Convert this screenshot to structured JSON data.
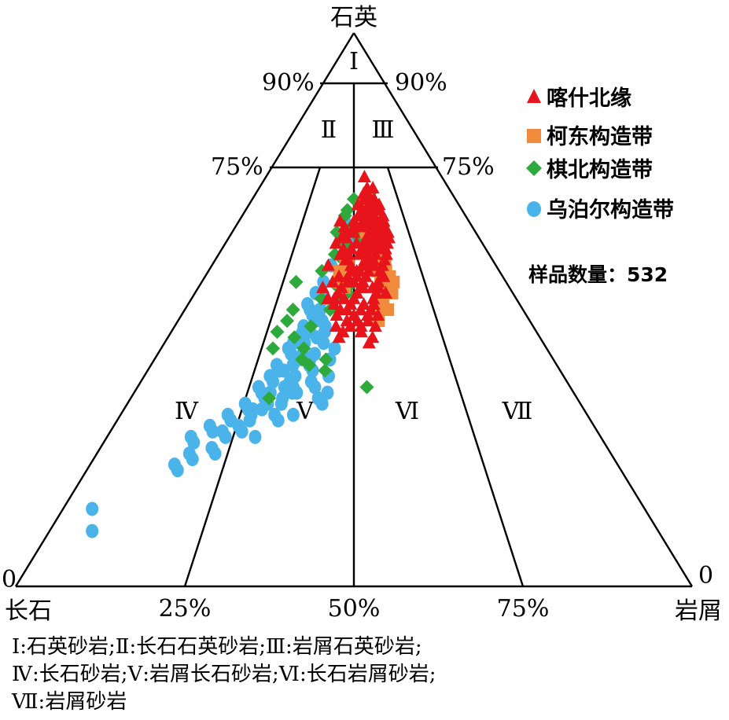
{
  "chart_data": {
    "type": "scatter",
    "diagram": "ternary",
    "apices": {
      "top": "石英",
      "left": "长石",
      "right": "岩屑"
    },
    "zero_labels": {
      "left": "0",
      "right": "0"
    },
    "quartz_ticks": [
      {
        "left": "90%",
        "right": "90%"
      },
      {
        "left": "75%",
        "right": "75%"
      }
    ],
    "base_ticks": [
      "25%",
      "50%",
      "75%"
    ],
    "field_labels": [
      "Ⅰ",
      "Ⅱ",
      "Ⅲ",
      "Ⅳ",
      "Ⅴ",
      "Ⅵ",
      "Ⅶ"
    ],
    "sample_count": "样品数量：532",
    "colors": {
      "red": "#e8141c",
      "orange": "#f08a3c",
      "green": "#2eaa3c",
      "blue": "#4ab4ea"
    },
    "series": [
      {
        "name": "喀什北缘",
        "marker": "triangle",
        "color": "#e8141c",
        "points": [
          [
            0.74,
            0.56
          ],
          [
            0.72,
            0.57
          ],
          [
            0.71,
            0.57
          ],
          [
            0.7,
            0.58
          ],
          [
            0.69,
            0.59
          ],
          [
            0.69,
            0.57
          ],
          [
            0.68,
            0.59
          ],
          [
            0.68,
            0.58
          ],
          [
            0.68,
            0.56
          ],
          [
            0.67,
            0.59
          ],
          [
            0.67,
            0.58
          ],
          [
            0.66,
            0.6
          ],
          [
            0.66,
            0.57
          ],
          [
            0.66,
            0.55
          ],
          [
            0.66,
            0.54
          ],
          [
            0.65,
            0.6
          ],
          [
            0.65,
            0.58
          ],
          [
            0.65,
            0.56
          ],
          [
            0.64,
            0.61
          ],
          [
            0.64,
            0.59
          ],
          [
            0.64,
            0.57
          ],
          [
            0.63,
            0.61
          ],
          [
            0.63,
            0.58
          ],
          [
            0.63,
            0.55
          ],
          [
            0.62,
            0.6
          ],
          [
            0.62,
            0.57
          ],
          [
            0.62,
            0.54
          ],
          [
            0.61,
            0.59
          ],
          [
            0.61,
            0.56
          ],
          [
            0.61,
            0.53
          ],
          [
            0.6,
            0.58
          ],
          [
            0.6,
            0.55
          ],
          [
            0.6,
            0.52
          ],
          [
            0.59,
            0.57
          ],
          [
            0.59,
            0.54
          ],
          [
            0.58,
            0.56
          ],
          [
            0.58,
            0.53
          ],
          [
            0.57,
            0.55
          ],
          [
            0.57,
            0.52
          ],
          [
            0.56,
            0.54
          ],
          [
            0.56,
            0.51
          ],
          [
            0.55,
            0.53
          ],
          [
            0.54,
            0.52
          ],
          [
            0.53,
            0.51
          ],
          [
            0.52,
            0.5
          ],
          [
            0.51,
            0.49
          ],
          [
            0.5,
            0.48
          ],
          [
            0.69,
            0.62
          ],
          [
            0.68,
            0.62
          ],
          [
            0.67,
            0.63
          ],
          [
            0.66,
            0.63
          ],
          [
            0.65,
            0.63
          ],
          [
            0.64,
            0.64
          ],
          [
            0.63,
            0.64
          ],
          [
            0.62,
            0.63
          ],
          [
            0.61,
            0.62
          ],
          [
            0.6,
            0.62
          ],
          [
            0.59,
            0.61
          ],
          [
            0.58,
            0.6
          ],
          [
            0.57,
            0.59
          ],
          [
            0.55,
            0.58
          ],
          [
            0.54,
            0.58
          ],
          [
            0.53,
            0.57
          ],
          [
            0.52,
            0.56
          ],
          [
            0.51,
            0.56
          ],
          [
            0.5,
            0.55
          ],
          [
            0.49,
            0.54
          ],
          [
            0.48,
            0.54
          ],
          [
            0.49,
            0.5
          ],
          [
            0.55,
            0.48
          ],
          [
            0.54,
            0.46
          ],
          [
            0.62,
            0.51
          ],
          [
            0.64,
            0.5
          ],
          [
            0.61,
            0.49
          ],
          [
            0.66,
            0.44
          ],
          [
            0.65,
            0.46
          ],
          [
            0.58,
            0.49
          ],
          [
            0.56,
            0.48
          ],
          [
            0.52,
            0.47
          ],
          [
            0.5,
            0.46
          ],
          [
            0.47,
            0.49
          ],
          [
            0.47,
            0.52
          ],
          [
            0.48,
            0.51
          ],
          [
            0.45,
            0.55
          ],
          [
            0.54,
            0.53
          ],
          [
            0.59,
            0.47
          ],
          [
            0.52,
            0.44
          ],
          [
            0.55,
            0.43
          ],
          [
            0.6,
            0.45
          ],
          [
            0.63,
            0.47
          ],
          [
            0.57,
            0.49
          ],
          [
            0.53,
            0.45
          ],
          [
            0.46,
            0.52
          ],
          [
            0.49,
            0.57
          ],
          [
            0.58,
            0.57
          ],
          [
            0.65,
            0.53
          ],
          [
            0.67,
            0.52
          ],
          [
            0.64,
            0.47
          ],
          [
            0.63,
            0.45
          ],
          [
            0.56,
            0.45
          ],
          [
            0.51,
            0.44
          ],
          [
            0.6,
            0.46
          ],
          [
            0.71,
            0.55
          ],
          [
            0.7,
            0.55
          ],
          [
            0.68,
            0.54
          ],
          [
            0.69,
            0.52
          ],
          [
            0.66,
            0.5
          ],
          [
            0.61,
            0.46
          ],
          [
            0.5,
            0.52
          ],
          [
            0.48,
            0.48
          ],
          [
            0.56,
            0.6
          ],
          [
            0.53,
            0.6
          ],
          [
            0.58,
            0.54
          ],
          [
            0.54,
            0.56
          ],
          [
            0.51,
            0.53
          ],
          [
            0.47,
            0.56
          ],
          [
            0.44,
            0.54
          ],
          [
            0.6,
            0.48
          ],
          [
            0.57,
            0.51
          ],
          [
            0.67,
            0.55
          ],
          [
            0.7,
            0.6
          ],
          [
            0.72,
            0.6
          ],
          [
            0.62,
            0.55
          ],
          [
            0.65,
            0.5
          ],
          [
            0.55,
            0.5
          ],
          [
            0.52,
            0.42
          ],
          [
            0.58,
            0.41
          ],
          [
            0.54,
            0.4
          ],
          [
            0.62,
            0.43
          ],
          [
            0.49,
            0.45
          ],
          [
            0.46,
            0.47
          ],
          [
            0.47,
            0.45
          ],
          [
            0.45,
            0.46
          ]
        ]
      },
      {
        "name": "柯东构造带",
        "marker": "square",
        "color": "#f08a3c",
        "points": [
          [
            0.67,
            0.54
          ],
          [
            0.66,
            0.56
          ],
          [
            0.64,
            0.56
          ],
          [
            0.64,
            0.55
          ],
          [
            0.62,
            0.58
          ],
          [
            0.62,
            0.56
          ],
          [
            0.61,
            0.57
          ],
          [
            0.6,
            0.6
          ],
          [
            0.6,
            0.59
          ],
          [
            0.6,
            0.57
          ],
          [
            0.6,
            0.55
          ],
          [
            0.59,
            0.61
          ],
          [
            0.59,
            0.59
          ],
          [
            0.59,
            0.56
          ],
          [
            0.58,
            0.61
          ],
          [
            0.58,
            0.59
          ],
          [
            0.57,
            0.61
          ],
          [
            0.57,
            0.58
          ],
          [
            0.56,
            0.62
          ],
          [
            0.56,
            0.59
          ],
          [
            0.55,
            0.61
          ],
          [
            0.55,
            0.59
          ],
          [
            0.54,
            0.6
          ],
          [
            0.53,
            0.59
          ],
          [
            0.52,
            0.59
          ],
          [
            0.51,
            0.58
          ],
          [
            0.5,
            0.57
          ],
          [
            0.48,
            0.57
          ],
          [
            0.69,
            0.55
          ],
          [
            0.7,
            0.56
          ],
          [
            0.68,
            0.55
          ],
          [
            0.66,
            0.58
          ],
          [
            0.63,
            0.58
          ],
          [
            0.55,
            0.63
          ],
          [
            0.53,
            0.62
          ],
          [
            0.5,
            0.6
          ],
          [
            0.65,
            0.57
          ],
          [
            0.58,
            0.57
          ],
          [
            0.61,
            0.59
          ],
          [
            0.63,
            0.6
          ],
          [
            0.58,
            0.48
          ],
          [
            0.55,
            0.45
          ],
          [
            0.57,
            0.45
          ],
          [
            0.54,
            0.47
          ],
          [
            0.59,
            0.47
          ]
        ]
      },
      {
        "name": "棋北构造带",
        "marker": "diamond",
        "color": "#2eaa3c",
        "points": [
          [
            0.71,
            0.58
          ],
          [
            0.7,
            0.5
          ],
          [
            0.68,
            0.47
          ],
          [
            0.67,
            0.46
          ],
          [
            0.65,
            0.49
          ],
          [
            0.64,
            0.43
          ],
          [
            0.63,
            0.52
          ],
          [
            0.62,
            0.47
          ],
          [
            0.6,
            0.43
          ],
          [
            0.59,
            0.46
          ],
          [
            0.58,
            0.47
          ],
          [
            0.57,
            0.39
          ],
          [
            0.55,
            0.31
          ],
          [
            0.54,
            0.45
          ],
          [
            0.54,
            0.48
          ],
          [
            0.53,
            0.48
          ],
          [
            0.52,
            0.4
          ],
          [
            0.5,
            0.32
          ],
          [
            0.48,
            0.31
          ],
          [
            0.47,
            0.38
          ],
          [
            0.46,
            0.29
          ],
          [
            0.45,
            0.34
          ],
          [
            0.43,
            0.37
          ],
          [
            0.41,
            0.37
          ],
          [
            0.41,
            0.43
          ],
          [
            0.4,
            0.39
          ],
          [
            0.39,
            0.43
          ],
          [
            0.36,
            0.53
          ],
          [
            0.34,
            0.31
          ],
          [
            0.43,
            0.29
          ],
          [
            0.52,
            0.45
          ],
          [
            0.5,
            0.43
          ]
        ]
      },
      {
        "name": "乌泊尔构造带",
        "marker": "circle",
        "color": "#4ab4ea",
        "points": [
          [
            0.66,
            0.46
          ],
          [
            0.62,
            0.48
          ],
          [
            0.58,
            0.42
          ],
          [
            0.55,
            0.4
          ],
          [
            0.53,
            0.38
          ],
          [
            0.52,
            0.41
          ],
          [
            0.51,
            0.36
          ],
          [
            0.5,
            0.37
          ],
          [
            0.49,
            0.38
          ],
          [
            0.48,
            0.39
          ],
          [
            0.47,
            0.36
          ],
          [
            0.46,
            0.38
          ],
          [
            0.45,
            0.35
          ],
          [
            0.44,
            0.37
          ],
          [
            0.43,
            0.33
          ],
          [
            0.42,
            0.34
          ],
          [
            0.41,
            0.36
          ],
          [
            0.4,
            0.35
          ],
          [
            0.4,
            0.31
          ],
          [
            0.39,
            0.33
          ],
          [
            0.38,
            0.3
          ],
          [
            0.37,
            0.31
          ],
          [
            0.36,
            0.28
          ],
          [
            0.35,
            0.29
          ],
          [
            0.34,
            0.3
          ],
          [
            0.33,
            0.26
          ],
          [
            0.32,
            0.27
          ],
          [
            0.31,
            0.23
          ],
          [
            0.3,
            0.24
          ],
          [
            0.29,
            0.2
          ],
          [
            0.28,
            0.21
          ],
          [
            0.27,
            0.17
          ],
          [
            0.26,
            0.18
          ],
          [
            0.24,
            0.18
          ],
          [
            0.22,
            0.16
          ],
          [
            0.21,
            0.17
          ],
          [
            0.14,
            0.05
          ],
          [
            0.1,
            0.07
          ],
          [
            0.34,
            0.42
          ],
          [
            0.41,
            0.44
          ],
          [
            0.38,
            0.44
          ],
          [
            0.36,
            0.41
          ],
          [
            0.35,
            0.44
          ],
          [
            0.33,
            0.43
          ],
          [
            0.31,
            0.33
          ],
          [
            0.43,
            0.45
          ],
          [
            0.44,
            0.42
          ],
          [
            0.46,
            0.42
          ],
          [
            0.48,
            0.41
          ],
          [
            0.5,
            0.4
          ],
          [
            0.47,
            0.42
          ],
          [
            0.42,
            0.4
          ],
          [
            0.39,
            0.4
          ],
          [
            0.38,
            0.36
          ],
          [
            0.37,
            0.35
          ],
          [
            0.36,
            0.34
          ],
          [
            0.35,
            0.37
          ],
          [
            0.34,
            0.34
          ],
          [
            0.33,
            0.31
          ],
          [
            0.32,
            0.3
          ],
          [
            0.31,
            0.28
          ],
          [
            0.3,
            0.28
          ],
          [
            0.29,
            0.26
          ],
          [
            0.28,
            0.27
          ],
          [
            0.27,
            0.24
          ],
          [
            0.27,
            0.3
          ],
          [
            0.25,
            0.22
          ],
          [
            0.24,
            0.23
          ],
          [
            0.23,
            0.19
          ],
          [
            0.42,
            0.37
          ],
          [
            0.44,
            0.34
          ],
          [
            0.45,
            0.4
          ],
          [
            0.4,
            0.39
          ],
          [
            0.39,
            0.32
          ],
          [
            0.36,
            0.36
          ],
          [
            0.35,
            0.31
          ],
          [
            0.32,
            0.28
          ],
          [
            0.31,
            0.37
          ],
          [
            0.3,
            0.34
          ],
          [
            0.28,
            0.23
          ],
          [
            0.35,
            0.36
          ],
          [
            0.33,
            0.34
          ],
          [
            0.41,
            0.39
          ],
          [
            0.37,
            0.4
          ],
          [
            0.46,
            0.36
          ]
        ]
      }
    ]
  },
  "caption": {
    "line1": "Ⅰ:石英砂岩;Ⅱ:长石石英砂岩;Ⅲ:岩屑石英砂岩;",
    "line2": "Ⅳ:长石砂岩;Ⅴ:岩屑长石砂岩;Ⅵ:长石岩屑砂岩;",
    "line3": "Ⅶ:岩屑砂岩"
  }
}
